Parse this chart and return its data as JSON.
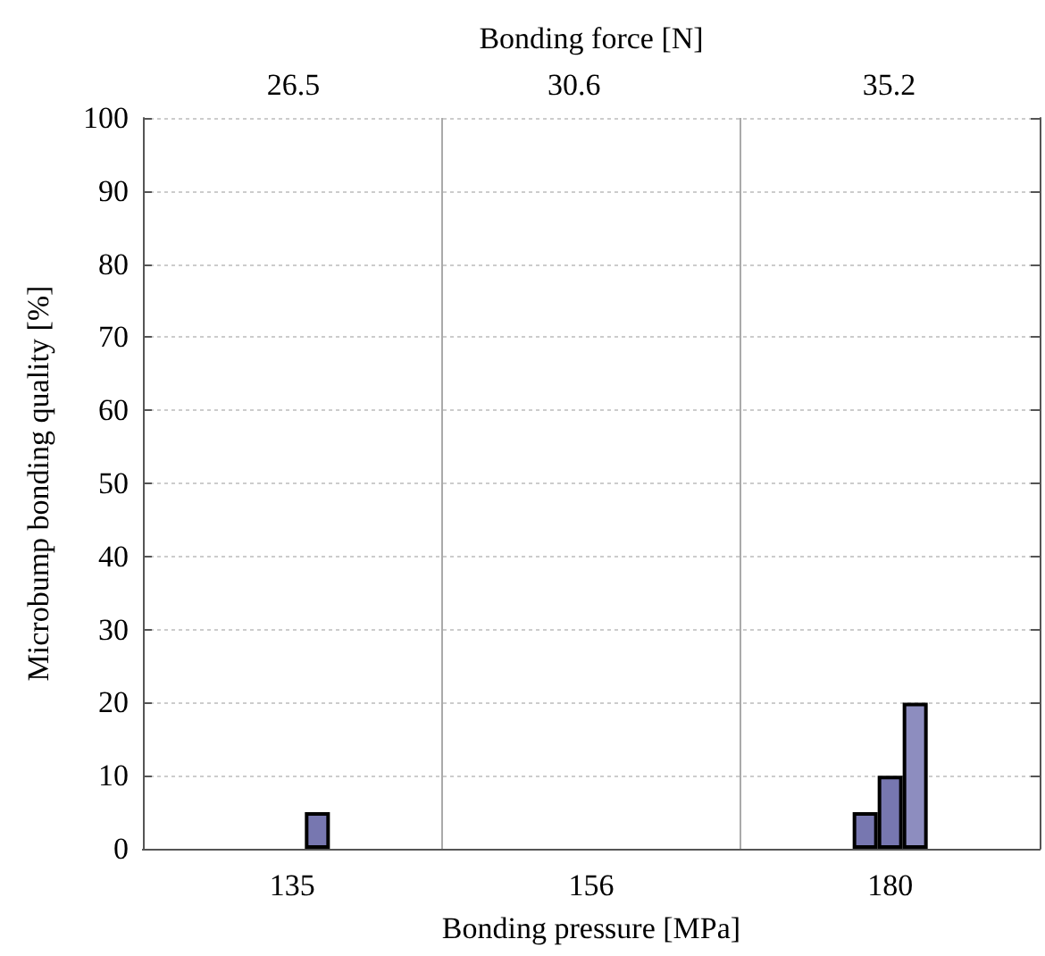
{
  "chart_data": {
    "type": "bar",
    "xlabel": "Bonding pressure [MPa]",
    "x2label": "Bonding force [N]",
    "ylabel": "Microbump bonding quality [%]",
    "categories": [
      "135",
      "156",
      "180"
    ],
    "x2lim": [
      24.3,
      37.4
    ],
    "x2ticks": [
      26.5,
      30.6,
      35.2
    ],
    "series": [
      {
        "color": "#7777b0",
        "values": [
          null,
          null,
          5
        ]
      },
      {
        "color": "#7777b0",
        "values": [
          null,
          null,
          10
        ]
      },
      {
        "color": "#8d8dbf",
        "colors": [
          "#7777b0",
          null,
          "#8d8dbf"
        ],
        "values": [
          5,
          null,
          20
        ]
      }
    ],
    "ylim": [
      0,
      100
    ],
    "yticks": [
      0,
      10,
      20,
      30,
      40,
      50,
      60,
      70,
      80,
      90,
      100
    ],
    "grid": true
  }
}
